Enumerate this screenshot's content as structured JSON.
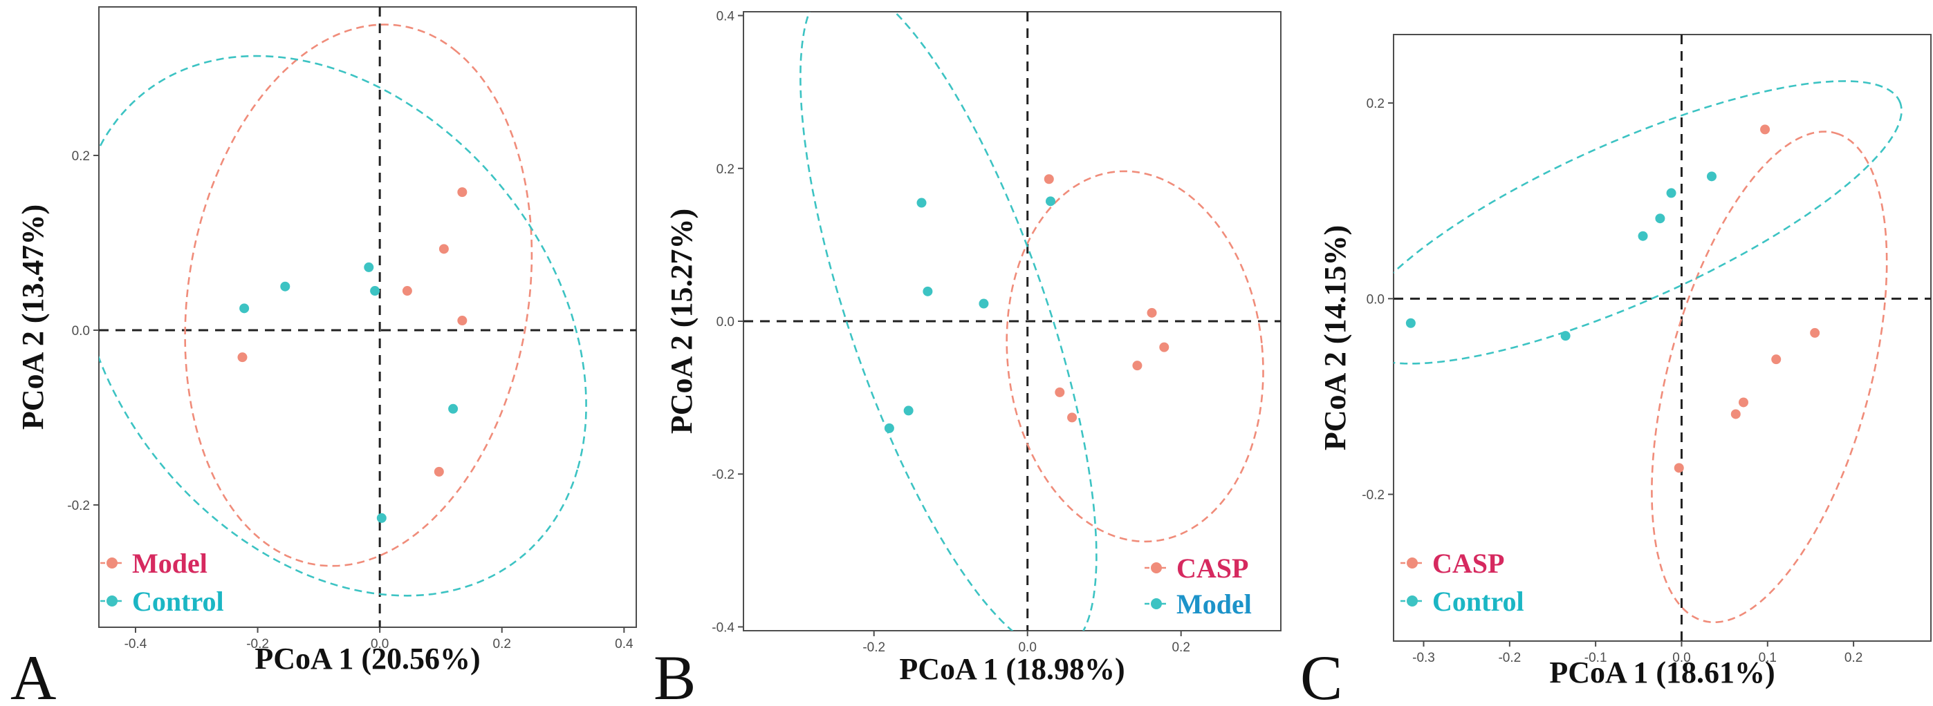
{
  "chart_data": [
    {
      "type": "scatter",
      "panel_label": "A",
      "xlabel": "PCoA 1 (20.56%)",
      "ylabel": "PCoA 2 (13.47%)",
      "xlim": [
        -0.46,
        0.42
      ],
      "ylim": [
        -0.34,
        0.37
      ],
      "xticks": [
        -0.4,
        -0.2,
        0.0,
        0.2,
        0.4
      ],
      "xtick_labels": [
        "-0.4",
        "-0.2",
        "0.0",
        "0.2",
        "0.4"
      ],
      "yticks": [
        -0.2,
        0.0,
        0.2
      ],
      "ytick_labels": [
        "-0.2",
        "0.0",
        "0.2"
      ],
      "legend_position": "bottom-left",
      "series": [
        {
          "name": "Model",
          "color": "#f08c7a",
          "legend_color": "#d6295f",
          "points": [
            [
              0.135,
              0.158
            ],
            [
              0.105,
              0.093
            ],
            [
              0.045,
              0.045
            ],
            [
              0.135,
              0.011
            ],
            [
              -0.225,
              -0.031
            ],
            [
              0.097,
              -0.162
            ]
          ],
          "ellipse": {
            "cx": -0.035,
            "cy": 0.04,
            "rx": 0.322,
            "ry": 0.27,
            "angle_deg": 60
          }
        },
        {
          "name": "Control",
          "color": "#3cc3c3",
          "legend_color": "#1bb6c4",
          "points": [
            [
              -0.155,
              0.05
            ],
            [
              -0.222,
              0.025
            ],
            [
              -0.018,
              0.072
            ],
            [
              -0.008,
              0.045
            ],
            [
              0.12,
              -0.09
            ],
            [
              0.003,
              -0.215
            ]
          ],
          "ellipse": {
            "cx": -0.079,
            "cy": 0.005,
            "rx": 0.435,
            "ry": 0.283,
            "angle_deg": -22
          }
        }
      ]
    },
    {
      "type": "scatter",
      "panel_label": "B",
      "xlabel": "PCoA 1 (18.98%)",
      "ylabel": "PCoA 2 (15.27%)",
      "xlim": [
        -0.37,
        0.33
      ],
      "ylim": [
        -0.405,
        0.405
      ],
      "xticks": [
        -0.2,
        0.0,
        0.2
      ],
      "xtick_labels": [
        "-0.2",
        "0.0",
        "0.2"
      ],
      "yticks": [
        -0.4,
        -0.2,
        0.0,
        0.2,
        0.4
      ],
      "ytick_labels": [
        "-0.4",
        "-0.2",
        "0.0",
        "0.2",
        "0.4"
      ],
      "legend_position": "bottom-right",
      "series": [
        {
          "name": "CASP",
          "color": "#f08c7a",
          "legend_color": "#d6295f",
          "points": [
            [
              0.028,
              0.186
            ],
            [
              0.162,
              0.011
            ],
            [
              0.178,
              -0.034
            ],
            [
              0.143,
              -0.058
            ],
            [
              0.042,
              -0.093
            ],
            [
              0.058,
              -0.126
            ]
          ],
          "ellipse": {
            "cx": 0.14,
            "cy": -0.046,
            "rx": 0.166,
            "ry": 0.243,
            "angle_deg": 6
          }
        },
        {
          "name": "Model",
          "color": "#3cc3c3",
          "legend_color": "#1c93c9",
          "points": [
            [
              -0.138,
              0.155
            ],
            [
              -0.13,
              0.039
            ],
            [
              0.03,
              0.157
            ],
            [
              -0.057,
              0.023
            ],
            [
              -0.155,
              -0.117
            ],
            [
              -0.18,
              -0.14
            ]
          ],
          "ellipse": {
            "cx": -0.103,
            "cy": 0.006,
            "rx": 0.461,
            "ry": 0.128,
            "angle_deg": -71
          }
        }
      ]
    },
    {
      "type": "scatter",
      "panel_label": "C",
      "xlabel": "PCoA 1 (18.61%)",
      "ylabel": "PCoA 2 (14.15%)",
      "xlim": [
        -0.335,
        0.29
      ],
      "ylim": [
        -0.35,
        0.27
      ],
      "xticks": [
        -0.3,
        -0.2,
        -0.1,
        0.0,
        0.1,
        0.2
      ],
      "xtick_labels": [
        "-0.3",
        "-0.2",
        "-0.1",
        "0.0",
        "0.1",
        "0.2"
      ],
      "yticks": [
        -0.2,
        0.0,
        0.2
      ],
      "ytick_labels": [
        "-0.2",
        "0.0",
        "0.2"
      ],
      "legend_position": "bottom-left",
      "series": [
        {
          "name": "CASP",
          "color": "#f08c7a",
          "legend_color": "#d6295f",
          "points": [
            [
              0.097,
              0.173
            ],
            [
              0.155,
              -0.035
            ],
            [
              0.11,
              -0.062
            ],
            [
              0.072,
              -0.106
            ],
            [
              0.063,
              -0.118
            ],
            [
              -0.003,
              -0.173
            ]
          ],
          "ellipse": {
            "cx": 0.102,
            "cy": -0.08,
            "rx": 0.261,
            "ry": 0.116,
            "angle_deg": 72
          }
        },
        {
          "name": "Control",
          "color": "#3cc3c3",
          "legend_color": "#1bb6c4",
          "points": [
            [
              -0.315,
              -0.025
            ],
            [
              -0.135,
              -0.038
            ],
            [
              -0.045,
              0.064
            ],
            [
              -0.025,
              0.082
            ],
            [
              -0.012,
              0.108
            ],
            [
              0.035,
              0.125
            ]
          ],
          "ellipse": {
            "cx": -0.063,
            "cy": 0.078,
            "rx": 0.34,
            "ry": 0.083,
            "angle_deg": 21
          }
        }
      ]
    }
  ]
}
